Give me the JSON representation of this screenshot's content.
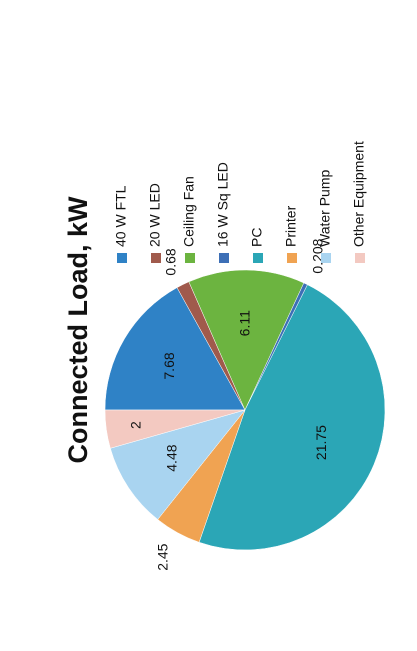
{
  "chart_data": {
    "type": "pie",
    "title": "Connected Load, kW",
    "categories": [
      "40 W FTL",
      "20 W LED",
      "Ceiling Fan",
      "16 W Sq LED",
      "PC",
      "Printer",
      "Water Pump",
      "Other Equipment"
    ],
    "values": [
      7.68,
      0.68,
      6.11,
      0.208,
      21.75,
      2.45,
      4.48,
      2
    ],
    "colors": [
      "#2f82c6",
      "#a05a4c",
      "#6cb440",
      "#3d6fb6",
      "#2ba6b6",
      "#f0a352",
      "#a9d4f0",
      "#f3c9c1"
    ],
    "legend": "right"
  }
}
